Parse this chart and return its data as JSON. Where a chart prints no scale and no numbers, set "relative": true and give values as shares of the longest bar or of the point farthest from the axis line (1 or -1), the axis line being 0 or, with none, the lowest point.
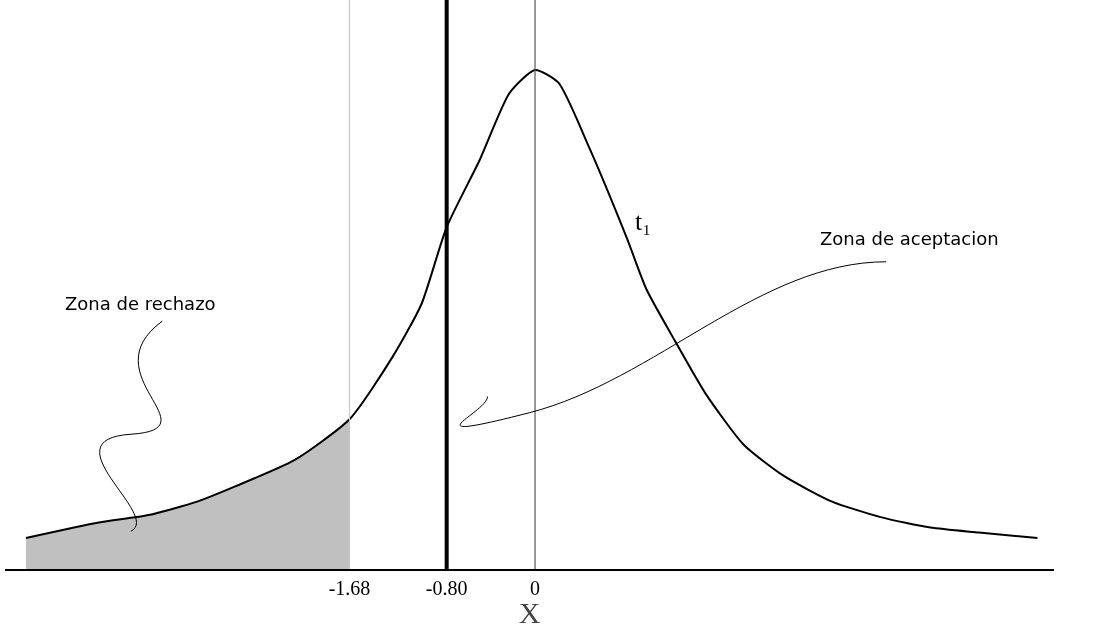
{
  "chart_data": {
    "type": "line",
    "relative": true,
    "xlabel": "X",
    "xlim": [
      -4.8,
      4.7
    ],
    "xticks": [
      -1.68,
      {
        "value": -0.8,
        "label": "-0.80"
      },
      0
    ],
    "grid": false,
    "legend": false,
    "marker": "none",
    "line_style": "solid",
    "series": [
      {
        "type": "area",
        "color": "#c0c0c0",
        "x": [
          -4.61,
          -3.95,
          -3.5,
          -3.06,
          -2.71,
          -2.18,
          -1.68
        ],
        "values": [
          0.062,
          0.093,
          0.108,
          0.135,
          0.166,
          0.218,
          0.3
        ]
      },
      {
        "name": "t₁",
        "color": "#000000",
        "x": [
          -4.61,
          -3.95,
          -3.5,
          -3.06,
          -2.71,
          -2.18,
          -1.68,
          -1.29,
          -1.03,
          -0.8,
          -0.5,
          -0.23,
          0,
          0.21,
          0.48,
          0.83,
          1.01,
          1.27,
          1.54,
          1.89,
          2.25,
          2.69,
          3.13,
          3.58,
          4.02,
          4.55
        ],
        "values": [
          0.062,
          0.093,
          0.108,
          0.135,
          0.166,
          0.218,
          0.3,
          0.425,
          0.53,
          0.685,
          0.82,
          0.954,
          1,
          0.975,
          0.85,
          0.664,
          0.56,
          0.456,
          0.353,
          0.249,
          0.187,
          0.135,
          0.104,
          0.083,
          0.073,
          0.062
        ]
      }
    ],
    "ref_lines": [
      {
        "axis": "x",
        "value": -1.68,
        "color": "#c8c8c8"
      },
      {
        "axis": "x",
        "value": -0.8,
        "color": "#000000"
      },
      {
        "axis": "x",
        "value": 0,
        "color": "#555555"
      }
    ],
    "annotations": [
      "Zona de rechazo",
      "Zona de aceptacion"
    ]
  }
}
